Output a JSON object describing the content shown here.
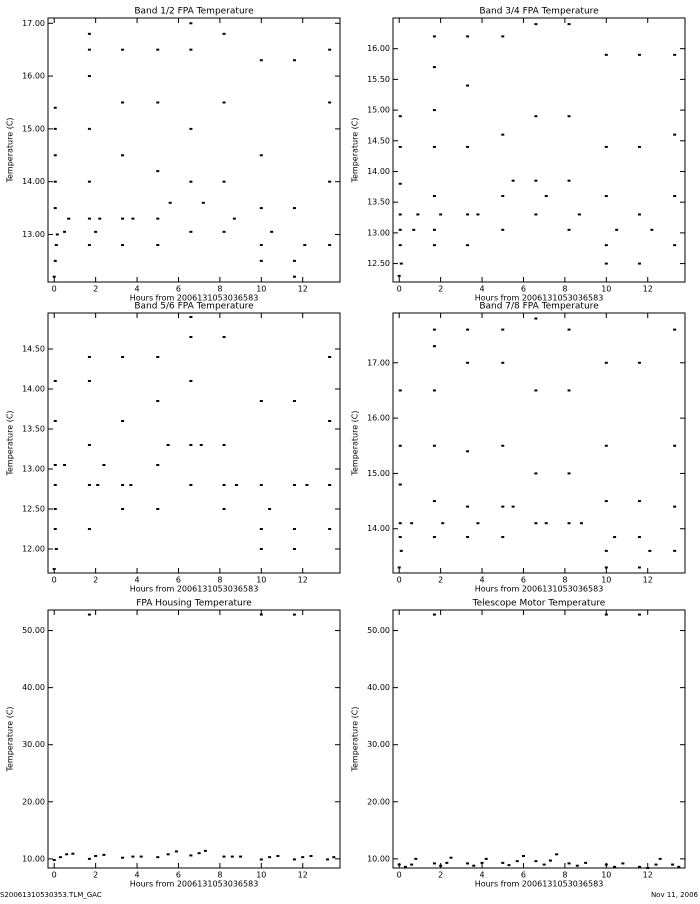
{
  "chart_data": [
    {
      "type": "scatter",
      "title": "Band 1/2 FPA Temperature",
      "xlabel": "Hours from 2006131053036583",
      "ylabel": "Temperature (C)",
      "color": "#000000",
      "xlim": [
        -0.3,
        13.8
      ],
      "xticks": [
        0,
        2,
        4,
        6,
        8,
        10,
        12
      ],
      "ylim": [
        12.1,
        17.1
      ],
      "yticks": [
        {
          "value": 13,
          "label": "13.00"
        },
        {
          "value": 14,
          "label": "14.00"
        },
        {
          "value": 15,
          "label": "15.00"
        },
        {
          "value": 16,
          "label": "16.00"
        },
        {
          "value": 17,
          "label": "17.00"
        }
      ],
      "x": [
        0,
        0.05,
        0.1,
        0.15,
        0.05,
        0.05,
        0.05,
        0.05,
        0.05,
        0.5,
        0.7,
        1.7,
        1.7,
        1.7,
        1.7,
        1.7,
        1.7,
        1.7,
        2.0,
        2.2,
        3.3,
        3.3,
        3.3,
        3.3,
        3.3,
        3.8,
        5,
        5,
        5,
        5,
        5,
        5.6,
        6.6,
        6.6,
        6.6,
        6.6,
        6.6,
        7.2,
        8.2,
        8.2,
        8.2,
        8.2,
        8.7,
        10,
        10,
        10,
        10,
        10,
        10.5,
        11.6,
        11.6,
        11.6,
        11.6,
        12.1,
        13.3,
        13.3,
        13.3,
        13.3
      ],
      "values": [
        12.2,
        12.5,
        12.8,
        13.0,
        13.5,
        14.0,
        14.5,
        15.0,
        15.4,
        13.05,
        13.3,
        12.8,
        13.3,
        14.0,
        15.0,
        16.0,
        16.5,
        16.8,
        13.05,
        13.3,
        12.8,
        13.3,
        14.5,
        15.5,
        16.5,
        13.3,
        12.8,
        13.3,
        14.2,
        15.5,
        16.5,
        13.6,
        13.05,
        14.0,
        15.0,
        16.5,
        17.0,
        13.6,
        13.05,
        14.0,
        15.5,
        16.8,
        13.3,
        12.5,
        12.8,
        13.5,
        14.5,
        16.3,
        13.05,
        12.2,
        12.5,
        13.5,
        16.3,
        12.8,
        12.8,
        14.0,
        15.5,
        16.5
      ]
    },
    {
      "type": "scatter",
      "title": "Band 3/4 FPA Temperature",
      "xlabel": "Hours from 2006131053036583",
      "ylabel": "Temperature (C)",
      "color": "#000000",
      "xlim": [
        -0.3,
        13.8
      ],
      "xticks": [
        0,
        2,
        4,
        6,
        8,
        10,
        12
      ],
      "ylim": [
        12.2,
        16.5
      ],
      "yticks": [
        {
          "value": 12.5,
          "label": "12.50"
        },
        {
          "value": 13,
          "label": "13.00"
        },
        {
          "value": 13.5,
          "label": "13.50"
        },
        {
          "value": 14,
          "label": "14.00"
        },
        {
          "value": 14.5,
          "label": "14.50"
        },
        {
          "value": 15,
          "label": "15.00"
        },
        {
          "value": 15.5,
          "label": "15.50"
        },
        {
          "value": 16,
          "label": "16.00"
        }
      ],
      "x": [
        0,
        0.1,
        0.05,
        0.05,
        0.05,
        0.05,
        0.05,
        0.05,
        0.7,
        0.9,
        1.7,
        1.7,
        1.7,
        1.7,
        1.7,
        1.7,
        1.7,
        2.0,
        3.3,
        3.3,
        3.3,
        3.3,
        3.3,
        3.8,
        5,
        5,
        5,
        5,
        5.5,
        6.6,
        6.6,
        6.6,
        6.6,
        7.1,
        8.2,
        8.2,
        8.2,
        8.2,
        8.7,
        10,
        10,
        10,
        10,
        10,
        10.5,
        11.6,
        11.6,
        11.6,
        11.6,
        12.2,
        13.3,
        13.3,
        13.3,
        13.3
      ],
      "values": [
        12.3,
        12.5,
        12.8,
        13.05,
        13.3,
        13.8,
        14.4,
        14.9,
        13.05,
        13.3,
        12.8,
        13.05,
        13.6,
        14.4,
        15.0,
        15.7,
        16.2,
        13.3,
        12.8,
        13.3,
        14.4,
        15.4,
        16.2,
        13.3,
        13.05,
        13.6,
        14.6,
        16.2,
        13.85,
        13.3,
        13.85,
        14.9,
        16.4,
        13.6,
        13.05,
        13.85,
        14.9,
        16.4,
        13.3,
        12.5,
        12.8,
        13.6,
        14.4,
        15.9,
        13.05,
        12.5,
        13.3,
        14.4,
        15.9,
        13.05,
        12.8,
        13.6,
        14.6,
        15.9
      ]
    },
    {
      "type": "scatter",
      "title": "Band 5/6 FPA Temperature",
      "xlabel": "Hours from 2006131053036583",
      "ylabel": "Temperature (C)",
      "color": "#000000",
      "xlim": [
        -0.3,
        13.8
      ],
      "xticks": [
        0,
        2,
        4,
        6,
        8,
        10,
        12
      ],
      "ylim": [
        11.7,
        14.95
      ],
      "yticks": [
        {
          "value": 12,
          "label": "12.00"
        },
        {
          "value": 12.5,
          "label": "12.50"
        },
        {
          "value": 13,
          "label": "13.00"
        },
        {
          "value": 13.5,
          "label": "13.50"
        },
        {
          "value": 14,
          "label": "14.00"
        },
        {
          "value": 14.5,
          "label": "14.50"
        }
      ],
      "x": [
        0,
        0.1,
        0.05,
        0.05,
        0.05,
        0.05,
        0.05,
        0.05,
        0.5,
        1.7,
        1.7,
        1.7,
        1.7,
        1.7,
        2.1,
        2.4,
        3.3,
        3.3,
        3.3,
        3.3,
        3.7,
        5,
        5,
        5,
        5,
        5.5,
        6.6,
        6.6,
        6.6,
        6.6,
        6.6,
        7.1,
        8.2,
        8.2,
        8.2,
        8.2,
        8.8,
        10,
        10,
        10,
        10,
        10.4,
        11.6,
        11.6,
        11.6,
        11.6,
        12.2,
        13.3,
        13.3,
        13.3,
        13.3
      ],
      "values": [
        11.75,
        12.0,
        12.25,
        12.5,
        12.8,
        13.05,
        13.6,
        14.1,
        13.05,
        12.25,
        12.8,
        13.3,
        14.1,
        14.4,
        12.8,
        13.05,
        12.5,
        12.8,
        13.6,
        14.4,
        12.8,
        12.5,
        13.05,
        13.85,
        14.4,
        13.3,
        12.8,
        13.3,
        14.1,
        14.65,
        14.9,
        13.3,
        12.5,
        12.8,
        13.3,
        14.65,
        12.8,
        12.0,
        12.25,
        12.8,
        13.85,
        12.5,
        12.0,
        12.25,
        12.8,
        13.85,
        12.8,
        12.25,
        12.8,
        13.6,
        14.4
      ]
    },
    {
      "type": "scatter",
      "title": "Band 7/8 FPA Temperature",
      "xlabel": "Hours from 2006131053036583",
      "ylabel": "Temperature (C)",
      "color": "#000000",
      "xlim": [
        -0.3,
        13.8
      ],
      "xticks": [
        0,
        2,
        4,
        6,
        8,
        10,
        12
      ],
      "ylim": [
        13.2,
        17.9
      ],
      "yticks": [
        {
          "value": 14,
          "label": "14.00"
        },
        {
          "value": 15,
          "label": "15.00"
        },
        {
          "value": 16,
          "label": "16.00"
        },
        {
          "value": 17,
          "label": "17.00"
        }
      ],
      "x": [
        0,
        0.1,
        0.05,
        0.05,
        0.05,
        0.05,
        0.05,
        0.6,
        1.7,
        1.7,
        1.7,
        1.7,
        1.7,
        1.7,
        2.1,
        3.3,
        3.3,
        3.3,
        3.3,
        3.3,
        3.8,
        5,
        5,
        5,
        5,
        5,
        5.5,
        6.6,
        6.6,
        6.6,
        6.6,
        7.1,
        8.2,
        8.2,
        8.2,
        8.2,
        8.8,
        10,
        10,
        10,
        10,
        10,
        10.4,
        11.6,
        11.6,
        11.6,
        11.6,
        12.1,
        13.3,
        13.3,
        13.3,
        13.3
      ],
      "values": [
        13.3,
        13.6,
        13.85,
        14.1,
        14.8,
        15.5,
        16.5,
        14.1,
        13.85,
        14.5,
        15.5,
        16.5,
        17.3,
        17.6,
        14.1,
        13.85,
        14.4,
        15.4,
        17.0,
        17.6,
        14.1,
        13.85,
        14.4,
        15.5,
        17.0,
        17.6,
        14.4,
        14.1,
        15.0,
        16.5,
        17.8,
        14.1,
        14.1,
        15.0,
        16.5,
        17.6,
        14.1,
        13.3,
        13.6,
        14.5,
        15.5,
        17.0,
        13.85,
        13.3,
        13.85,
        14.5,
        17.0,
        13.6,
        13.6,
        14.4,
        15.5,
        17.6
      ]
    },
    {
      "type": "scatter",
      "title": "FPA Housing Temperature",
      "xlabel": "Hours from 2006131053036583",
      "ylabel": "Temperature (C)",
      "color": "#000000",
      "xlim": [
        -0.3,
        13.8
      ],
      "xticks": [
        0,
        2,
        4,
        6,
        8,
        10,
        12
      ],
      "ylim": [
        8.4,
        53.6
      ],
      "yticks": [
        {
          "value": 10,
          "label": "10.00"
        },
        {
          "value": 20,
          "label": "20.00"
        },
        {
          "value": 30,
          "label": "30.00"
        },
        {
          "value": 40,
          "label": "40.00"
        },
        {
          "value": 50,
          "label": "50.00"
        }
      ],
      "x": [
        0,
        0.3,
        0.6,
        0.9,
        1.7,
        2,
        2.4,
        1.7,
        3.3,
        3.8,
        4.2,
        5,
        5.5,
        5.9,
        6.6,
        7,
        7.3,
        8.2,
        8.6,
        9,
        10,
        10.4,
        10.8,
        10,
        11.6,
        12,
        12.4,
        11.6,
        13.2,
        13.5
      ],
      "values": [
        9.8,
        10.3,
        10.8,
        10.9,
        10,
        10.5,
        10.7,
        52.8,
        10.2,
        10.4,
        10.4,
        10.3,
        10.8,
        11.3,
        10.6,
        11,
        11.4,
        10.4,
        10.4,
        10.4,
        9.9,
        10.3,
        10.5,
        52.8,
        9.9,
        10.3,
        10.5,
        52.8,
        9.9,
        10.3
      ]
    },
    {
      "type": "scatter",
      "title": "Telescope Motor Temperature",
      "xlabel": "Hours from 2006131053036583",
      "ylabel": "Temperature (C)",
      "color": "#000000",
      "xlim": [
        -0.3,
        13.8
      ],
      "xticks": [
        0,
        2,
        4,
        6,
        8,
        10,
        12
      ],
      "ylim": [
        8.4,
        53.6
      ],
      "yticks": [
        {
          "value": 10,
          "label": "10.00"
        },
        {
          "value": 20,
          "label": "20.00"
        },
        {
          "value": 30,
          "label": "30.00"
        },
        {
          "value": 40,
          "label": "40.00"
        },
        {
          "value": 50,
          "label": "50.00"
        }
      ],
      "x": [
        0,
        0.3,
        0.6,
        0.8,
        1.7,
        2,
        2.3,
        2.5,
        1.7,
        3.3,
        3.6,
        4,
        4.2,
        5,
        5.3,
        5.7,
        6,
        6.6,
        7,
        7.3,
        7.6,
        8.2,
        8.6,
        9,
        10,
        10.4,
        10.8,
        10,
        11.6,
        12,
        12.4,
        12.6,
        11.6,
        13.2,
        13.5
      ],
      "values": [
        9,
        8.6,
        9,
        10,
        9.2,
        8.8,
        9.3,
        10.2,
        52.8,
        9.2,
        8.8,
        9.3,
        10,
        9.3,
        8.9,
        9.6,
        10.5,
        9.6,
        9,
        9.7,
        10.8,
        9.2,
        8.8,
        9.3,
        9,
        8.6,
        9.2,
        52.8,
        8.6,
        8.4,
        9,
        10,
        52.8,
        9,
        8.6
      ]
    }
  ],
  "footer": {
    "left": "S20061310530353.TLM_GAC",
    "right": "Nov 11, 2006"
  }
}
